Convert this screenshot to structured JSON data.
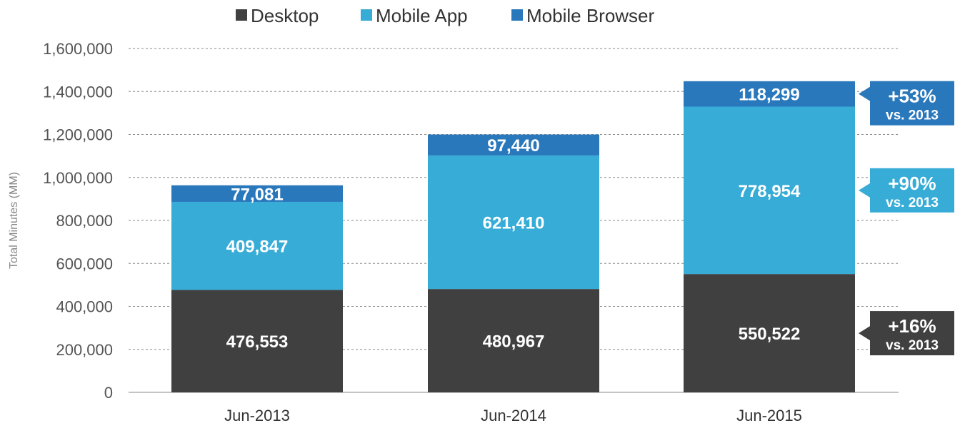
{
  "chart_data": {
    "type": "bar",
    "stacked": true,
    "title": "",
    "xlabel": "",
    "ylabel": "Total Minutes (MM)",
    "ylim": [
      0,
      1600000
    ],
    "yticks": [
      0,
      200000,
      400000,
      600000,
      800000,
      1000000,
      1200000,
      1400000,
      1600000
    ],
    "ytick_labels": [
      "0",
      "200,000",
      "400,000",
      "600,000",
      "800,000",
      "1,000,000",
      "1,200,000",
      "1,400,000",
      "1,600,000"
    ],
    "grid": true,
    "legend_position": "top",
    "categories": [
      "Jun-2013",
      "Jun-2014",
      "Jun-2015"
    ],
    "series": [
      {
        "key": "desktop",
        "name": "Desktop",
        "color": "#404040",
        "values": [
          476553,
          480967,
          550522
        ],
        "labels": [
          "476,553",
          "480,967",
          "550,522"
        ]
      },
      {
        "key": "mobile-app",
        "name": "Mobile App",
        "color": "#36acd7",
        "values": [
          409847,
          621410,
          778954
        ],
        "labels": [
          "409,847",
          "621,410",
          "778,954"
        ]
      },
      {
        "key": "mobile-browser",
        "name": "Mobile Browser",
        "color": "#2a78bc",
        "values": [
          77081,
          97440,
          118299
        ],
        "labels": [
          "77,081",
          "97,440",
          "118,299"
        ]
      }
    ],
    "annotations": [
      {
        "series": "mobile-browser",
        "main": "+53%",
        "sub": "vs. 2013",
        "color": "#2a78bc"
      },
      {
        "series": "mobile-app",
        "main": "+90%",
        "sub": "vs. 2013",
        "color": "#36acd7"
      },
      {
        "series": "desktop",
        "main": "+16%",
        "sub": "vs. 2013",
        "color": "#404040"
      }
    ]
  }
}
